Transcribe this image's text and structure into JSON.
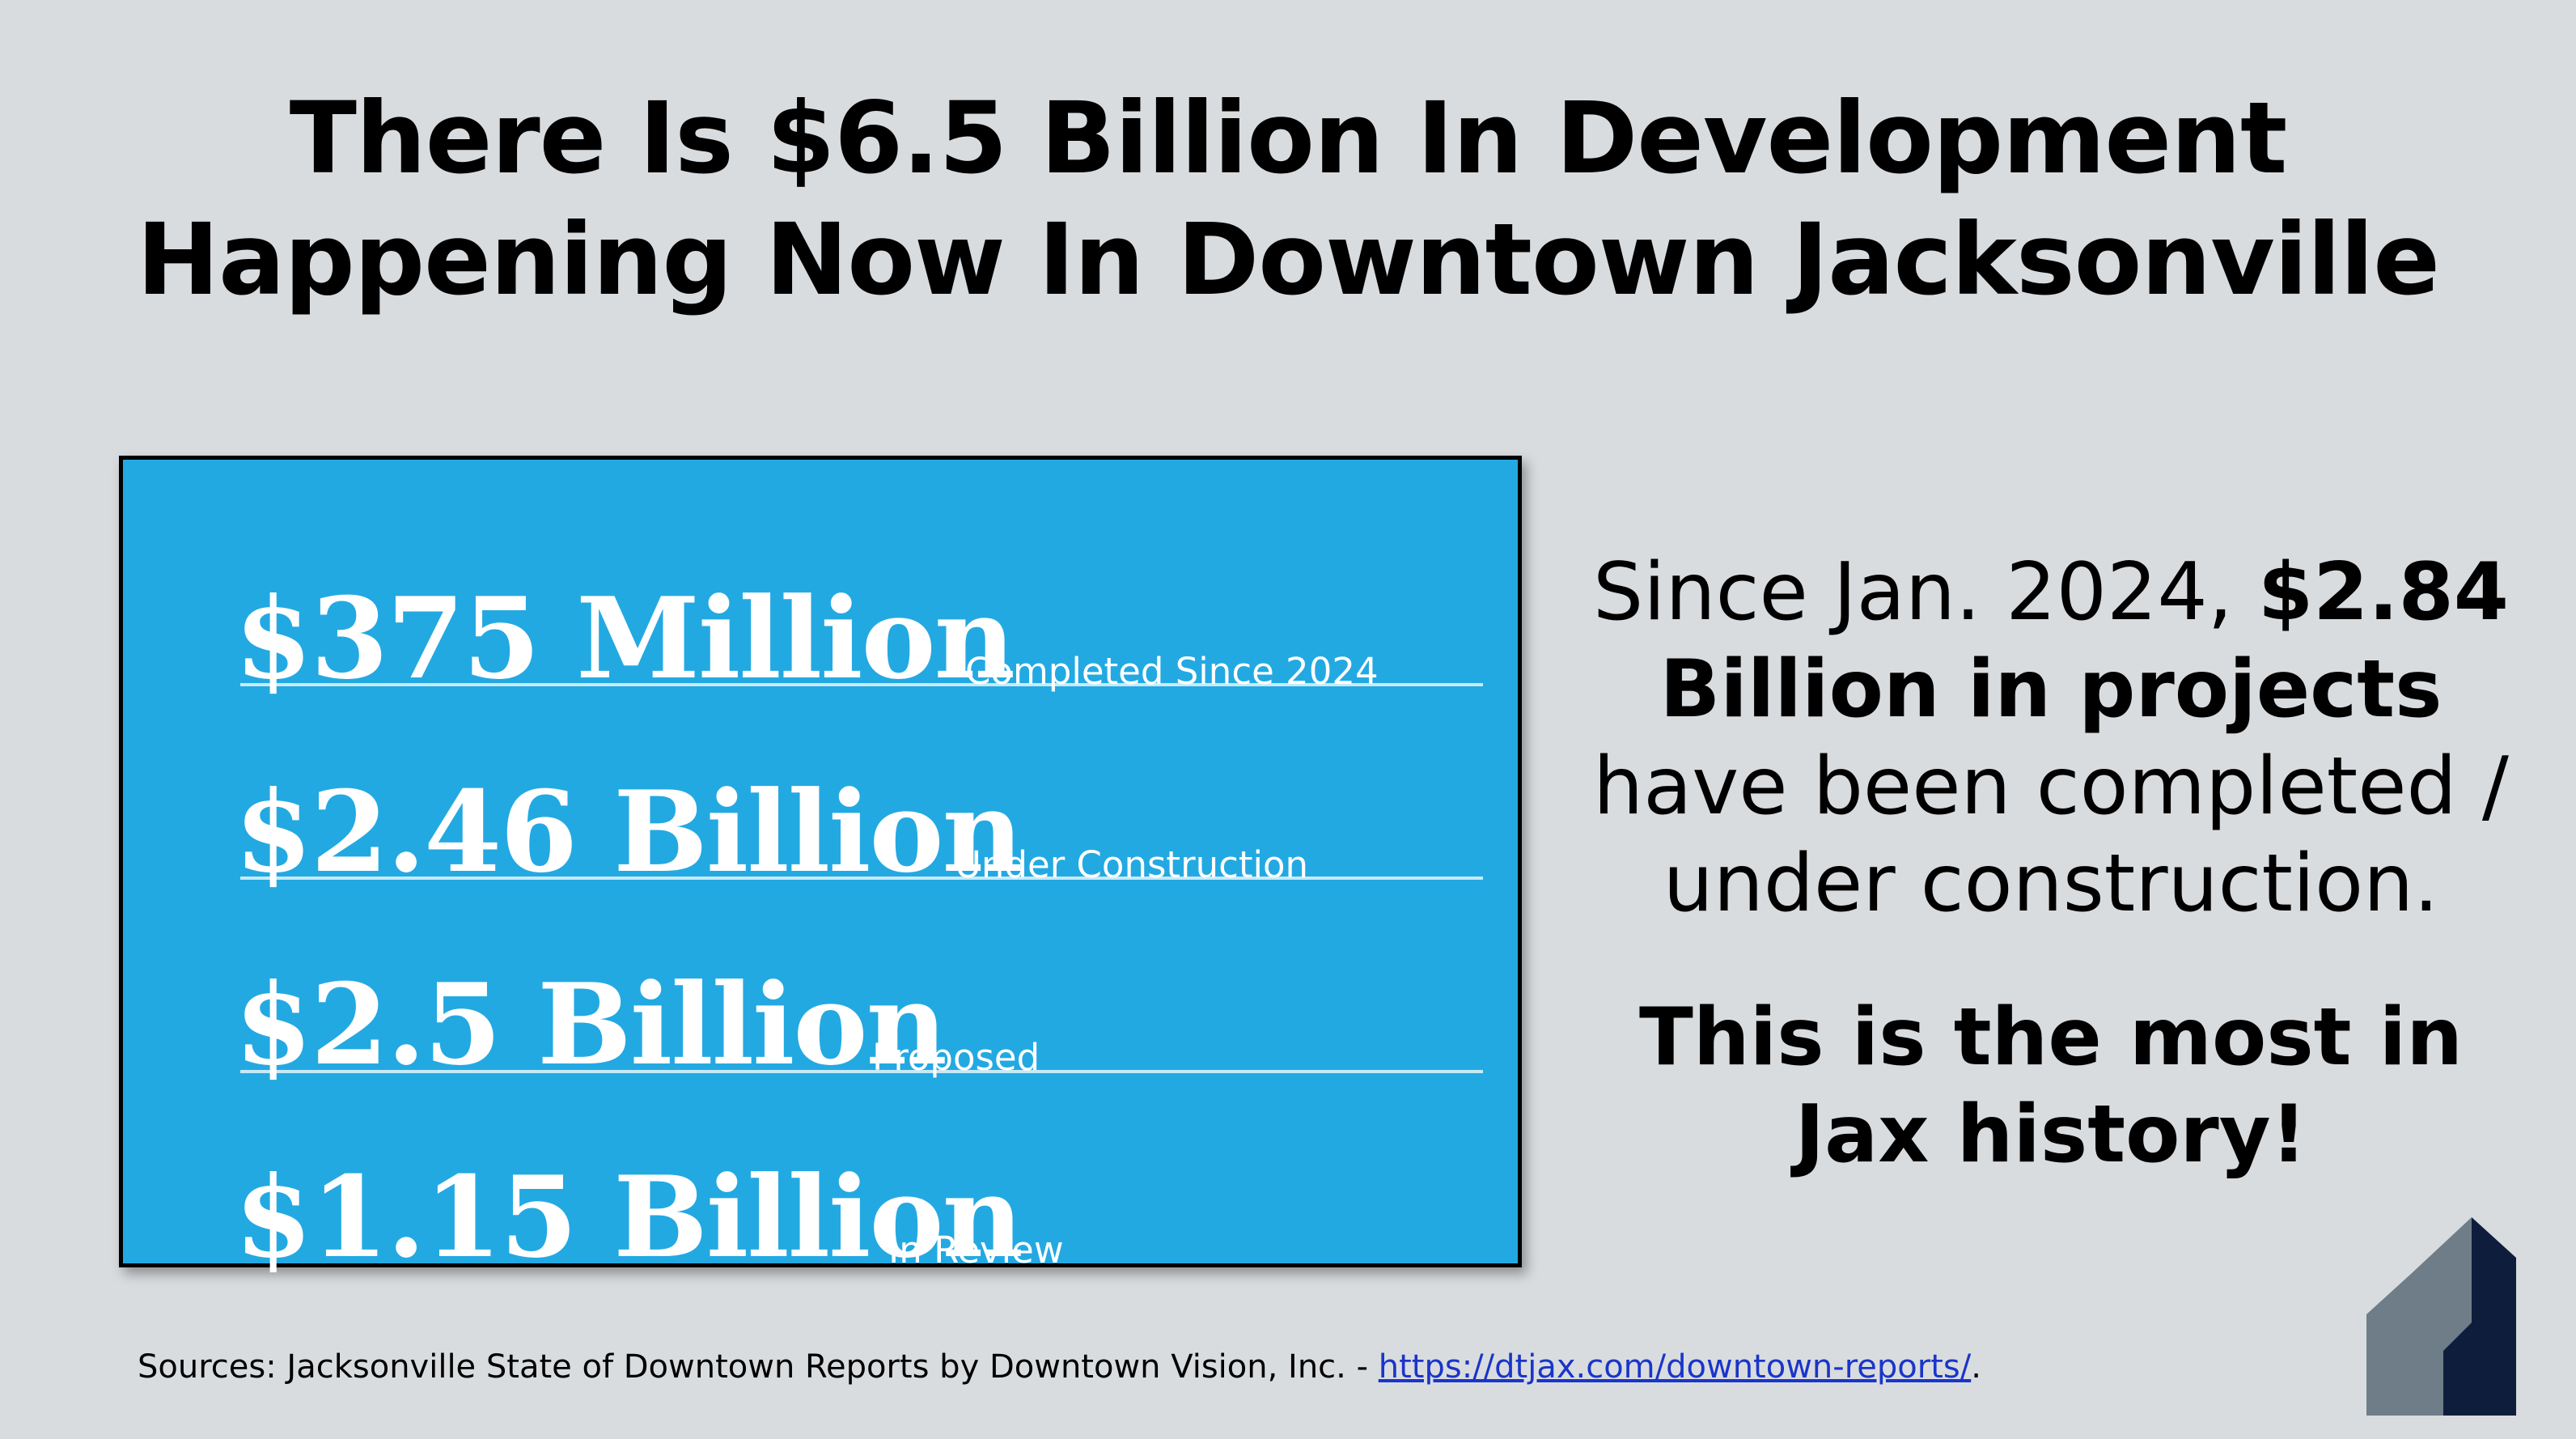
{
  "title": {
    "line1": "There Is $6.5 Billion In Development",
    "line2": "Happening Now In Downtown Jacksonville"
  },
  "panel": {
    "background": "#23a9e2",
    "stats": [
      {
        "amount": "$375 Million",
        "label": "Completed Since 2024"
      },
      {
        "amount": "$2.46 Billion",
        "label": "Under Construction"
      },
      {
        "amount": "$2.5 Billion",
        "label": "Proposed"
      },
      {
        "amount": "$1.15 Billion",
        "label": "In Review"
      }
    ]
  },
  "side": {
    "p1_a": "Since Jan. 2024, ",
    "p1_b": "$2.84 Billion in projects",
    "p1_c": " have been completed / under construction.",
    "p2": "This is the most in Jax history!"
  },
  "sources": {
    "prefix": "Sources: Jacksonville State of Downtown Reports by Downtown Vision, Inc. - ",
    "link": "https://dtjax.com/downtown-reports/",
    "suffix": "."
  },
  "logo": {
    "icon": "building-logo-icon",
    "colors": {
      "gray": "#6e7d87",
      "navy": "#0f1d3d"
    }
  }
}
